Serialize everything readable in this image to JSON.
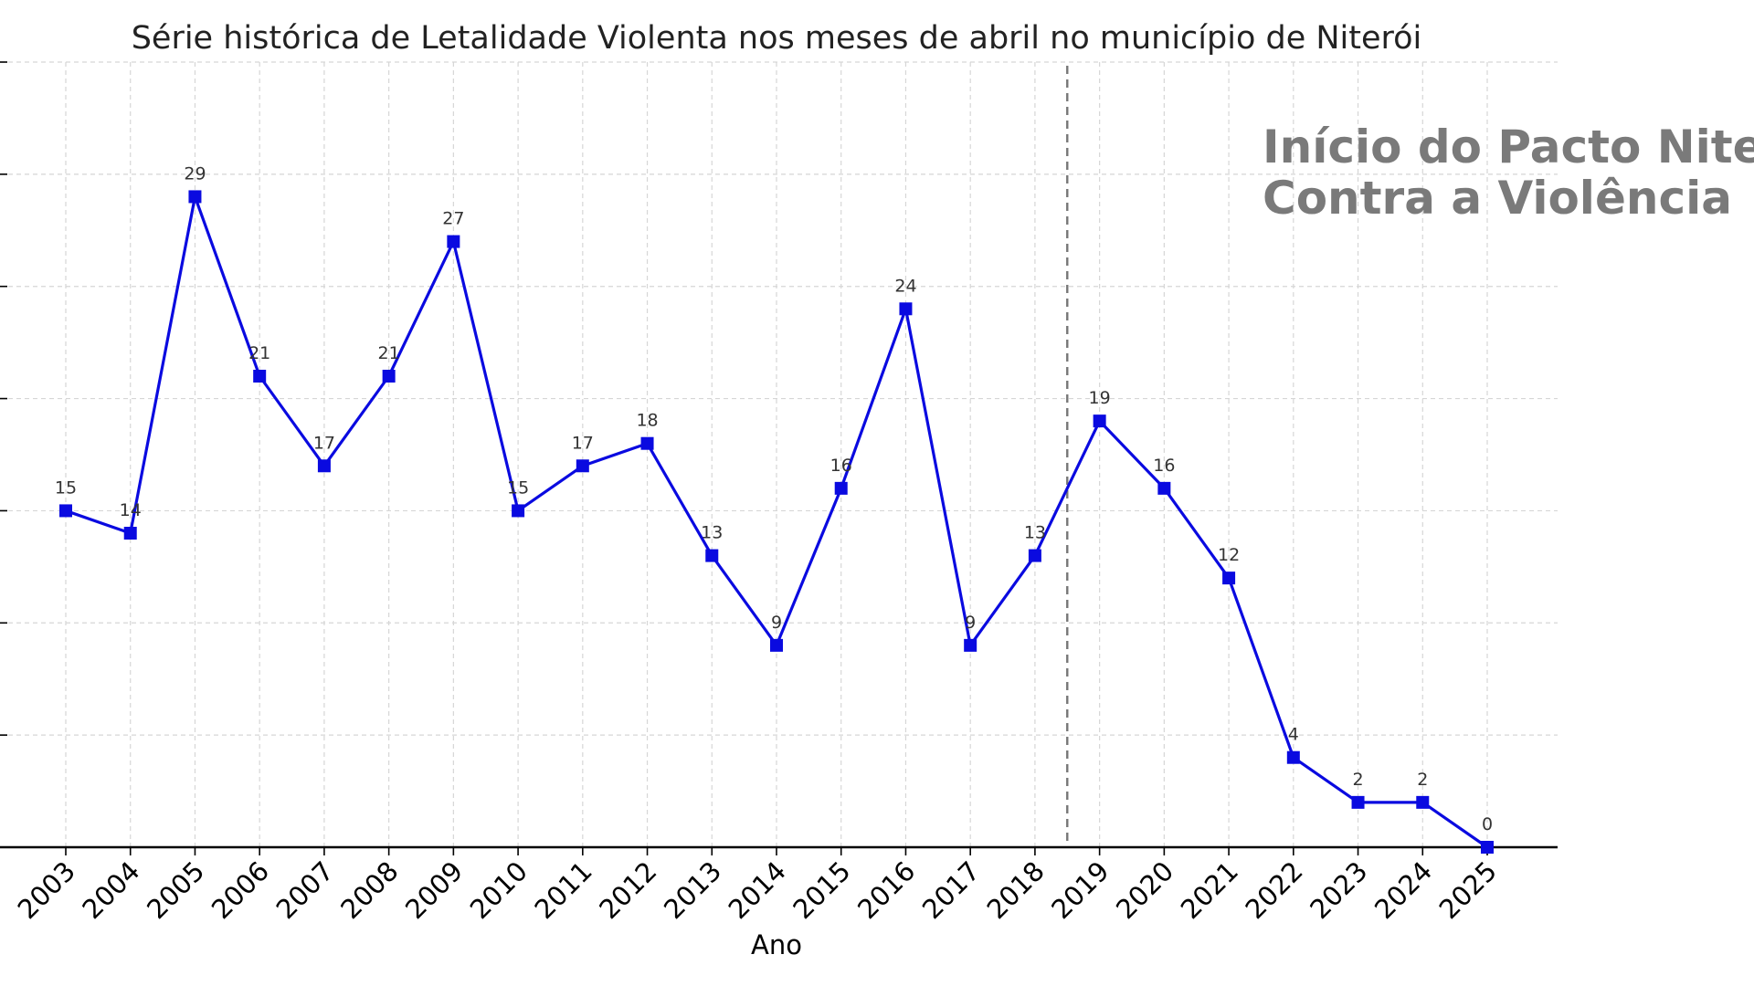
{
  "chart_data": {
    "type": "line",
    "title": "Série histórica de Letalidade Violenta nos meses de abril no município de Niterói",
    "xlabel": "Ano",
    "ylabel": "",
    "x": [
      "2003",
      "2004",
      "2005",
      "2006",
      "2007",
      "2008",
      "2009",
      "2010",
      "2011",
      "2012",
      "2013",
      "2014",
      "2015",
      "2016",
      "2017",
      "2018",
      "2019",
      "2020",
      "2021",
      "2022",
      "2023",
      "2024",
      "2025"
    ],
    "series": [
      {
        "name": "Letalidade Violenta",
        "values": [
          15,
          14,
          29,
          21,
          17,
          21,
          27,
          15,
          17,
          18,
          13,
          9,
          16,
          24,
          9,
          13,
          19,
          16,
          12,
          4,
          2,
          2,
          0
        ],
        "marker": "square",
        "color": "#0a0ae0"
      }
    ],
    "ylim": [
      0,
      35
    ],
    "y_gridlines": [
      5,
      10,
      15,
      20,
      25,
      30,
      35
    ],
    "grid": true,
    "y_tick_labels_visible": false,
    "reference_line": {
      "x_between": [
        "2018",
        "2019"
      ],
      "style": "dashed",
      "color": "#777777"
    },
    "annotation": {
      "lines": [
        "Início do Pacto Niteroi",
        "Contra a Violência"
      ],
      "color": "#7a7a7a"
    }
  }
}
